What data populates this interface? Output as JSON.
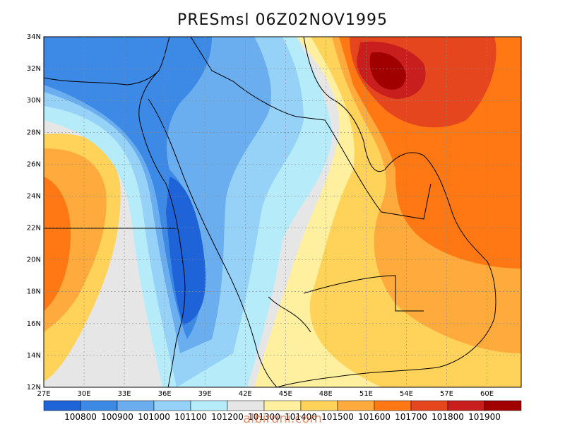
{
  "title": "PRESmsl 06Z02NOV1995",
  "x_ticks": [
    "27E",
    "30E",
    "33E",
    "36E",
    "39E",
    "42E",
    "45E",
    "48E",
    "51E",
    "54E",
    "57E",
    "60E"
  ],
  "y_ticks": [
    "34N",
    "32N",
    "30N",
    "28N",
    "26N",
    "24N",
    "22N",
    "20N",
    "18N",
    "16N",
    "14N",
    "12N"
  ],
  "colorbar": {
    "colors": [
      "#1e64d8",
      "#3c8ae6",
      "#6aaef0",
      "#96d2f8",
      "#b6ecfa",
      "#e6e6e6",
      "#fff0a0",
      "#ffd25a",
      "#ffaa3c",
      "#ff7814",
      "#e6461e",
      "#c81e1e",
      "#a00000"
    ],
    "labels": [
      "100800",
      "100900",
      "101000",
      "101100",
      "101200",
      "101300",
      "101400",
      "101500",
      "101600",
      "101700",
      "101800",
      "101900"
    ]
  },
  "watermark": "albiruni.com"
}
